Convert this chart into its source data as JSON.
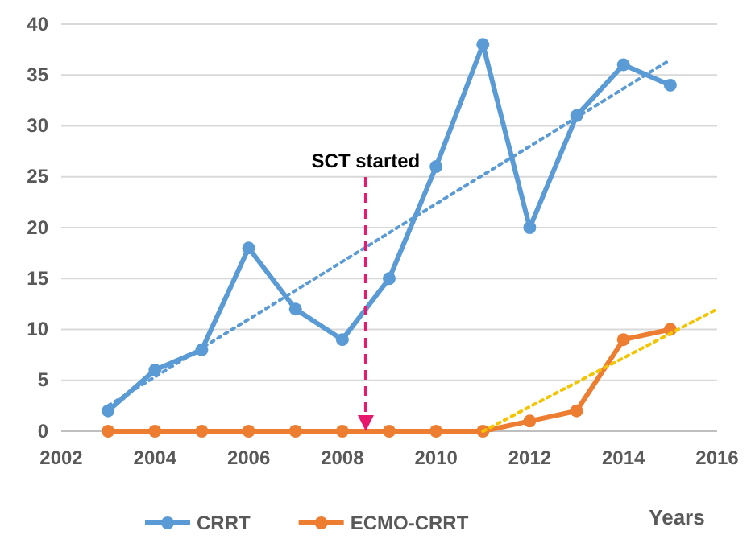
{
  "chart_data": {
    "type": "line",
    "xlabel": "Years",
    "x": [
      2003,
      2004,
      2005,
      2006,
      2007,
      2008,
      2009,
      2010,
      2011,
      2012,
      2013,
      2014,
      2015
    ],
    "series": [
      {
        "name": "CRRT",
        "color": "#5b9bd5",
        "values": [
          2,
          6,
          8,
          18,
          12,
          9,
          15,
          26,
          38,
          20,
          31,
          36,
          34
        ]
      },
      {
        "name": "ECMO-CRRT",
        "color": "#ed7d31",
        "values": [
          0,
          0,
          0,
          0,
          0,
          0,
          0,
          0,
          0,
          1,
          2,
          9,
          10
        ]
      },
      {
        "type": "line",
        "color": "#5b9bd5",
        "x": [
          2003,
          2015
        ],
        "values": [
          2.5,
          36.5
        ],
        "marker": "none",
        "line_style": "dotted"
      },
      {
        "type": "line",
        "color": "#f5c400",
        "x": [
          2011,
          2016
        ],
        "values": [
          0,
          12
        ],
        "marker": "none",
        "line_style": "dotted"
      }
    ],
    "xlim": [
      2002,
      2016
    ],
    "xticks": [
      2002,
      2004,
      2006,
      2008,
      2010,
      2012,
      2014,
      2016
    ],
    "ylim": [
      0,
      40
    ],
    "yticks": [
      0,
      5,
      10,
      15,
      20,
      25,
      30,
      35,
      40
    ],
    "grid": "y",
    "legend": "bottom",
    "marker": "circle",
    "line_style": "solid",
    "ref_lines": [
      {
        "axis": "x",
        "value": 2008.5,
        "label": "SCT started",
        "color": "#e8186f",
        "line_style": "dashed"
      }
    ]
  }
}
